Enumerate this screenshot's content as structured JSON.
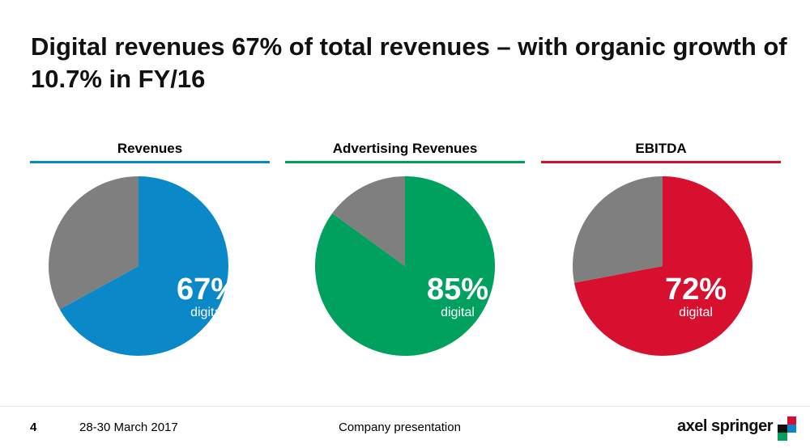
{
  "title": "Digital revenues 67% of total revenues – with organic growth of 10.7% in FY/16",
  "colors": {
    "revenues": "#0a88c8",
    "advertising": "#00a05f",
    "ebitda": "#d7102f",
    "other": "#7f7f7f"
  },
  "panels": [
    {
      "header": "Revenues",
      "percent_label": "67%",
      "sub_label": "digital"
    },
    {
      "header": "Advertising Revenues",
      "percent_label": "85%",
      "sub_label": "digital"
    },
    {
      "header": "EBITDA",
      "percent_label": "72%",
      "sub_label": "digital"
    }
  ],
  "chart_data": [
    {
      "type": "pie",
      "title": "Revenues",
      "categories": [
        "digital",
        "other"
      ],
      "values": [
        67,
        33
      ]
    },
    {
      "type": "pie",
      "title": "Advertising Revenues",
      "categories": [
        "digital",
        "other"
      ],
      "values": [
        85,
        15
      ]
    },
    {
      "type": "pie",
      "title": "EBITDA",
      "categories": [
        "digital",
        "other"
      ],
      "values": [
        72,
        28
      ]
    }
  ],
  "footer": {
    "page_number": "4",
    "date": "28-30 March 2017",
    "presentation": "Company presentation",
    "logo": "axel springer"
  }
}
